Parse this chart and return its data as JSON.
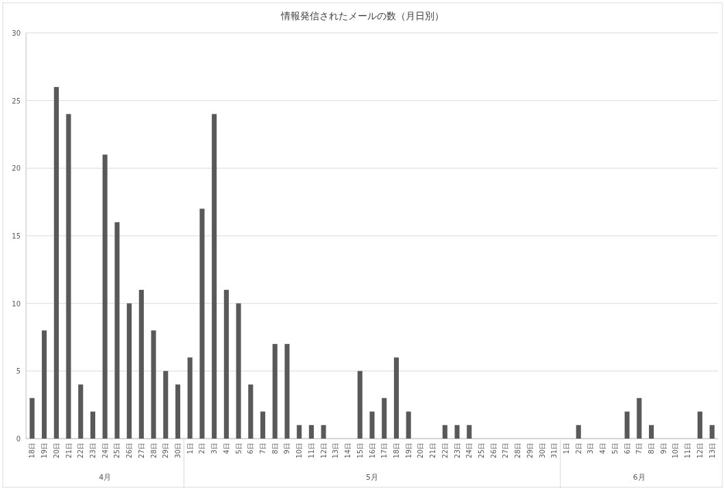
{
  "chart_data": {
    "type": "bar",
    "title": "情報発信されたメールの数（月日別）",
    "categories": [
      "18日",
      "19日",
      "20日",
      "21日",
      "22日",
      "23日",
      "24日",
      "25日",
      "26日",
      "27日",
      "28日",
      "29日",
      "30日",
      "1日",
      "2日",
      "3日",
      "4日",
      "5日",
      "6日",
      "7日",
      "8日",
      "9日",
      "10日",
      "11日",
      "12日",
      "13日",
      "14日",
      "15日",
      "16日",
      "17日",
      "18日",
      "19日",
      "20日",
      "21日",
      "22日",
      "23日",
      "24日",
      "25日",
      "26日",
      "27日",
      "28日",
      "29日",
      "30日",
      "31日",
      "1日",
      "2日",
      "3日",
      "4日",
      "5日",
      "6日",
      "7日",
      "8日",
      "9日",
      "10日",
      "11日",
      "12日",
      "13日"
    ],
    "values": [
      3,
      8,
      26,
      24,
      4,
      2,
      21,
      16,
      10,
      11,
      8,
      5,
      4,
      6,
      17,
      24,
      11,
      10,
      4,
      2,
      7,
      7,
      1,
      1,
      1,
      0,
      0,
      5,
      2,
      3,
      6,
      2,
      0,
      0,
      1,
      1,
      1,
      0,
      0,
      0,
      0,
      0,
      0,
      0,
      0,
      1,
      0,
      0,
      0,
      2,
      3,
      1,
      0,
      0,
      0,
      2,
      1
    ],
    "color": "#595959",
    "ylim": [
      0,
      30
    ],
    "yticks": [
      0,
      5,
      10,
      15,
      20,
      25,
      30
    ],
    "grid": "y",
    "annotations": [
      "4月",
      "5月",
      "6月"
    ]
  }
}
